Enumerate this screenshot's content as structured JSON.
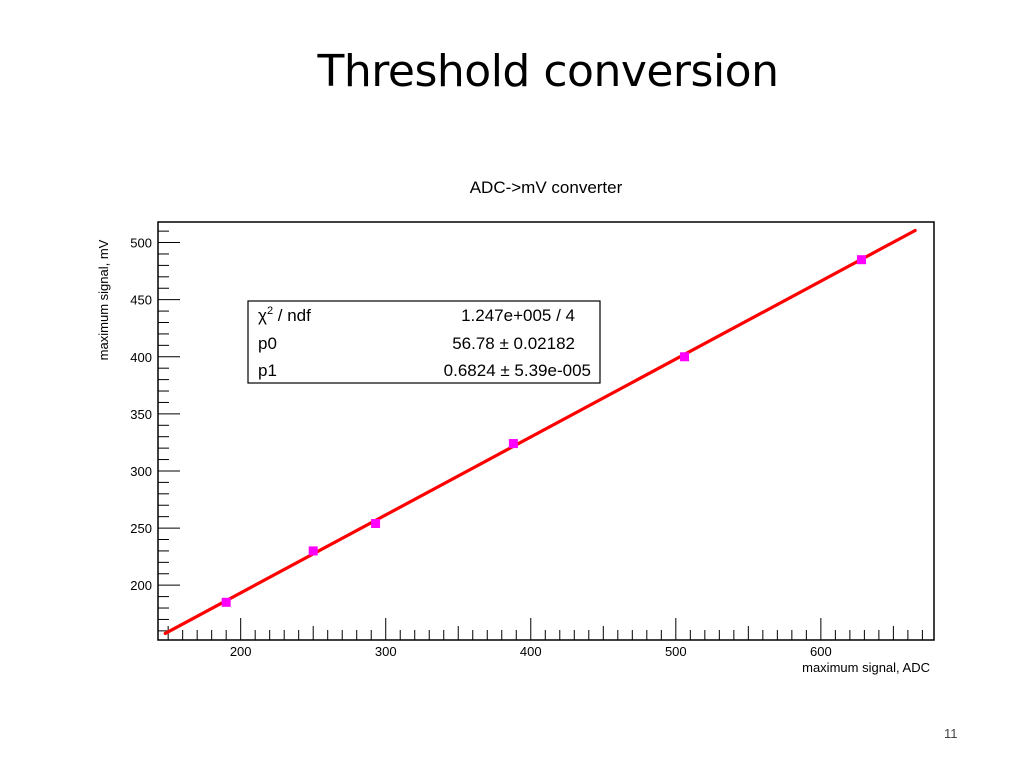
{
  "slide": {
    "title": "Threshold conversion",
    "page_number": "11"
  },
  "colors": {
    "fit_line": "#ff0000",
    "markers": "#ff00ff",
    "axes": "#000000",
    "background": "#ffffff"
  },
  "stats_box": {
    "rows": [
      {
        "label_sym": "χ",
        "label_sup": "2",
        "label_rest": " / ndf",
        "value": "1.247e+005 / 4"
      },
      {
        "label": "p0",
        "value": "56.78 ± 0.02182"
      },
      {
        "label": "p1",
        "value": "0.6824 ± 5.39e-005"
      }
    ]
  },
  "chart_data": {
    "type": "scatter",
    "title": "ADC->mV converter",
    "xlabel": "maximum signal, ADC",
    "ylabel": "maximum signal, mV",
    "xlim": [
      143,
      678
    ],
    "ylim": [
      152,
      518
    ],
    "x_ticks": [
      200,
      300,
      400,
      500,
      600
    ],
    "x_tick_labels": [
      "200",
      "300",
      "400",
      "500",
      "600"
    ],
    "y_ticks": [
      200,
      250,
      300,
      350,
      400,
      450,
      500
    ],
    "y_tick_labels": [
      "200",
      "250",
      "300",
      "350",
      "400",
      "450",
      "500"
    ],
    "x_minor_step": 10,
    "y_minor_step": 10,
    "grid": false,
    "series": [
      {
        "type": "scatter",
        "x": [
          190,
          250,
          293,
          388,
          506,
          628
        ],
        "y": [
          185,
          230,
          254,
          324,
          400,
          485
        ]
      }
    ],
    "fit": {
      "model": "p0 + p1*x",
      "p0": 56.78,
      "p1": 0.6824,
      "x_range": [
        148,
        665
      ]
    }
  }
}
